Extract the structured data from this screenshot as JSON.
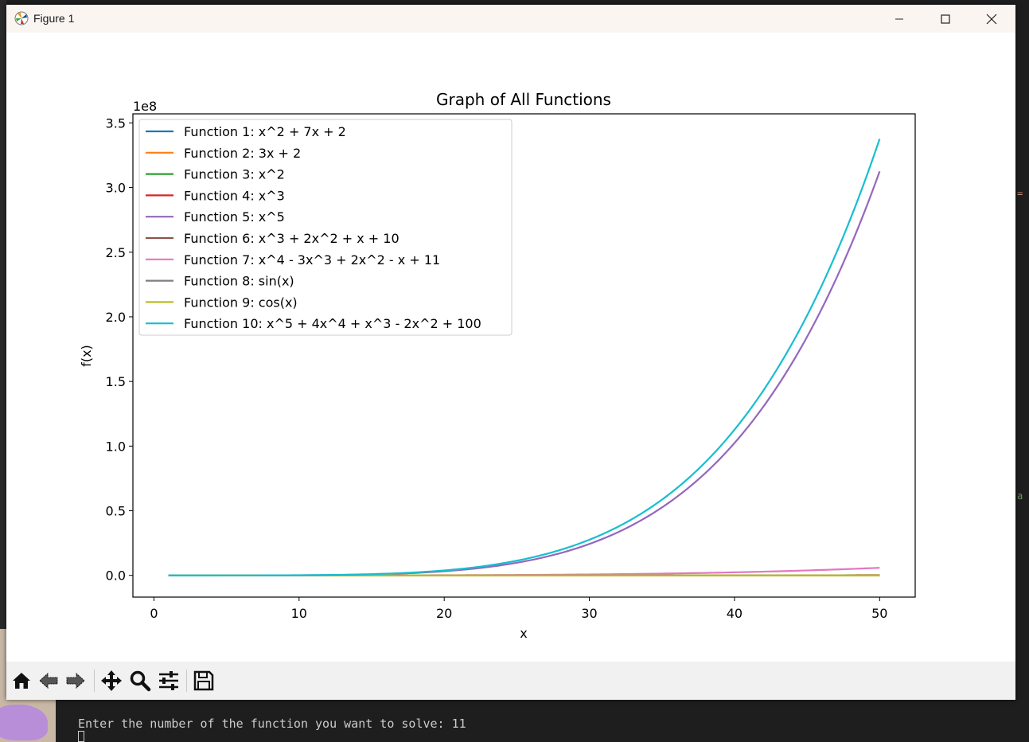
{
  "window": {
    "title": "Figure 1",
    "controls": {
      "minimize": "minimize",
      "maximize": "maximize",
      "close": "close"
    }
  },
  "chart_data": {
    "type": "line",
    "title": "Graph of All Functions",
    "xlabel": "x",
    "ylabel": "f(x)",
    "y_offset_label": "1e8",
    "xlim": [
      -1.45,
      52.45
    ],
    "ylim": [
      -16800000,
      357000000
    ],
    "xticks": [
      0,
      10,
      20,
      30,
      40,
      50
    ],
    "xtick_labels": [
      "0",
      "10",
      "20",
      "30",
      "40",
      "50"
    ],
    "yticks": [
      0,
      50000000,
      100000000,
      150000000,
      200000000,
      250000000,
      300000000,
      350000000
    ],
    "ytick_labels": [
      "0.0",
      "0.5",
      "1.0",
      "1.5",
      "2.0",
      "2.5",
      "3.0",
      "3.5"
    ],
    "x_range": [
      1,
      50
    ],
    "legend_position": "upper-left",
    "grid": false,
    "series": [
      {
        "name": "Function 1: x^2 + 7x + 2",
        "color": "#1f77b4",
        "coeffs": [
          2,
          7,
          1
        ]
      },
      {
        "name": "Function 2: 3x + 2",
        "color": "#ff7f0e",
        "coeffs": [
          2,
          3
        ]
      },
      {
        "name": "Function 3: x^2",
        "color": "#2ca02c",
        "coeffs": [
          0,
          0,
          1
        ]
      },
      {
        "name": "Function 4: x^3",
        "color": "#d62728",
        "coeffs": [
          0,
          0,
          0,
          1
        ]
      },
      {
        "name": "Function 5: x^5",
        "color": "#9467bd",
        "coeffs": [
          0,
          0,
          0,
          0,
          0,
          1
        ]
      },
      {
        "name": "Function 6: x^3 + 2x^2 + x + 10",
        "color": "#8c564b",
        "coeffs": [
          10,
          1,
          2,
          1
        ]
      },
      {
        "name": "Function 7: x^4 - 3x^3 + 2x^2 - x + 11",
        "color": "#e377c2",
        "coeffs": [
          11,
          -1,
          2,
          -3,
          1
        ]
      },
      {
        "name": "Function 8: sin(x)",
        "color": "#7f7f7f",
        "fn": "sin"
      },
      {
        "name": "Function 9: cos(x)",
        "color": "#bcbd22",
        "fn": "cos"
      },
      {
        "name": "Function 10: x^5 + 4x^4 + x^3 - 2x^2 + 100",
        "color": "#17becf",
        "coeffs": [
          100,
          0,
          -2,
          1,
          4,
          1
        ]
      }
    ]
  },
  "toolbar": {
    "items": [
      "home-icon",
      "back-icon",
      "forward-icon",
      "pan-icon",
      "zoom-icon",
      "configure-subplots-icon",
      "save-icon"
    ]
  },
  "terminal": {
    "prompt_line": "Enter the number of the function you want to solve: 11"
  }
}
